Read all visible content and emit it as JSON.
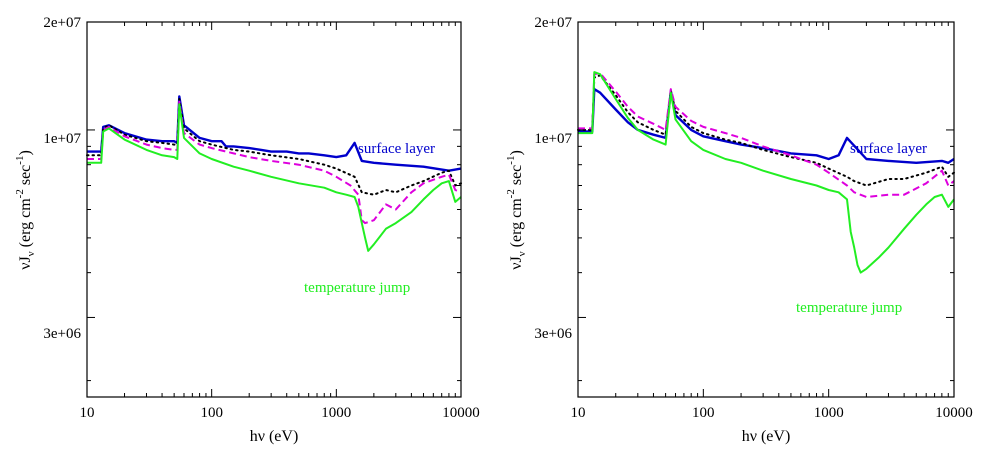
{
  "colors": {
    "surface": "#0000cc",
    "dotted": "#000000",
    "dashed": "#dd00dd",
    "jump": "#22ee22"
  },
  "chart_data": [
    {
      "type": "line",
      "xscale": "log",
      "yscale": "log",
      "xlim": [
        10,
        10000
      ],
      "ylim": [
        1800000,
        20000000
      ],
      "xticks": [
        "10",
        "100",
        "1000",
        "10000"
      ],
      "yticks": [
        "2e+07",
        "1e+07",
        "3e+06"
      ],
      "xlabel": "hν (eV)",
      "ylabel": {
        "main": "νJ",
        "sub": "ν",
        "units_open": " (erg cm",
        "exp1": "-2",
        "mid": " sec",
        "exp2": "-1",
        "close": ")"
      },
      "annotations": [
        {
          "text": "surface layer",
          "color": "#0000cc"
        },
        {
          "text": "temperature jump",
          "color": "#22ee22"
        }
      ],
      "series": [
        {
          "style": "solid",
          "color": "#0000cc",
          "x": [
            10,
            13,
            13.5,
            15,
            20,
            30,
            40,
            50,
            53,
            55,
            60,
            80,
            100,
            120,
            130,
            150,
            200,
            250,
            300,
            400,
            500,
            600,
            800,
            1000,
            1200,
            1400,
            1600,
            2000,
            3000,
            5000,
            8000,
            10000
          ],
          "y": [
            8700000,
            8700000,
            10200000,
            10300000,
            9800000,
            9400000,
            9300000,
            9300000,
            9200000,
            12400000,
            10300000,
            9500000,
            9300000,
            9300000,
            9000000,
            9000000,
            8900000,
            8800000,
            8700000,
            8700000,
            8600000,
            8600000,
            8500000,
            8400000,
            8500000,
            9200000,
            8200000,
            8100000,
            8000000,
            7900000,
            7700000,
            7800000
          ]
        },
        {
          "style": "dotted",
          "color": "#000000",
          "x": [
            10,
            13,
            13.5,
            15,
            20,
            30,
            40,
            50,
            53,
            55,
            60,
            80,
            100,
            150,
            200,
            300,
            500,
            800,
            1000,
            1400,
            1600,
            2000,
            2500,
            3000,
            4000,
            5000,
            7000,
            8000,
            9000,
            10000
          ],
          "y": [
            8500000,
            8500000,
            10100000,
            10300000,
            9700000,
            9300000,
            9200000,
            9100000,
            9100000,
            12200000,
            10100000,
            9300000,
            9100000,
            8800000,
            8700000,
            8500000,
            8300000,
            8000000,
            7800000,
            7400000,
            6700000,
            6600000,
            6800000,
            6700000,
            7000000,
            7200000,
            7600000,
            7700000,
            7000000,
            7100000
          ]
        },
        {
          "style": "dashed",
          "color": "#dd00dd",
          "x": [
            10,
            13,
            13.5,
            15,
            20,
            30,
            40,
            50,
            53,
            55,
            60,
            80,
            100,
            150,
            200,
            300,
            500,
            800,
            1000,
            1300,
            1500,
            1600,
            1700,
            2000,
            2500,
            3000,
            4000,
            5000,
            7000,
            8000,
            9000,
            10000
          ],
          "y": [
            8300000,
            8300000,
            10000000,
            10200000,
            9600000,
            9100000,
            8900000,
            8800000,
            8800000,
            12000000,
            9800000,
            9100000,
            8900000,
            8600000,
            8400000,
            8200000,
            8000000,
            7700000,
            7400000,
            7000000,
            6600000,
            5600000,
            5500000,
            5600000,
            6200000,
            6000000,
            6700000,
            7100000,
            7400000,
            7500000,
            6800000,
            6700000
          ]
        },
        {
          "style": "solid",
          "color": "#22ee22",
          "x": [
            10,
            13,
            13.5,
            15,
            20,
            30,
            40,
            50,
            53,
            55,
            60,
            80,
            100,
            150,
            200,
            300,
            500,
            800,
            1000,
            1200,
            1400,
            1500,
            1600,
            1700,
            1800,
            2000,
            2500,
            3000,
            4000,
            5000,
            6000,
            7000,
            8000,
            9000,
            10000
          ],
          "y": [
            8100000,
            8100000,
            9900000,
            10100000,
            9400000,
            8800000,
            8500000,
            8400000,
            8300000,
            11800000,
            9500000,
            8600000,
            8300000,
            7900000,
            7700000,
            7400000,
            7100000,
            6900000,
            6700000,
            6600000,
            6500000,
            6100000,
            5500000,
            5000000,
            4600000,
            4800000,
            5300000,
            5500000,
            5900000,
            6400000,
            6800000,
            7100000,
            7200000,
            6300000,
            6500000
          ]
        }
      ]
    },
    {
      "type": "line",
      "xscale": "log",
      "yscale": "log",
      "xlim": [
        10,
        10000
      ],
      "ylim": [
        1800000,
        20000000
      ],
      "xticks": [
        "10",
        "100",
        "1000",
        "10000"
      ],
      "yticks": [
        "2e+07",
        "1e+07",
        "3e+06"
      ],
      "xlabel": "hν (eV)",
      "ylabel": {
        "main": "νJ",
        "sub": "ν",
        "units_open": " (erg cm",
        "exp1": "-2",
        "mid": " sec",
        "exp2": "-1",
        "close": ")"
      },
      "annotations": [
        {
          "text": "surface layer",
          "color": "#0000cc"
        },
        {
          "text": "temperature jump",
          "color": "#22ee22"
        }
      ],
      "series": [
        {
          "style": "solid",
          "color": "#0000cc",
          "x": [
            10,
            13,
            13.5,
            15,
            20,
            25,
            30,
            40,
            50,
            55,
            60,
            80,
            100,
            150,
            200,
            300,
            500,
            800,
            1000,
            1200,
            1400,
            2000,
            3000,
            5000,
            8000,
            9000,
            10000
          ],
          "y": [
            9900000,
            9900000,
            13000000,
            12700000,
            11400000,
            10500000,
            10000000,
            9700000,
            9500000,
            12800000,
            11000000,
            10000000,
            9600000,
            9300000,
            9100000,
            8900000,
            8600000,
            8500000,
            8300000,
            8500000,
            9500000,
            8300000,
            8200000,
            8100000,
            8200000,
            8100000,
            8300000
          ]
        },
        {
          "style": "dotted",
          "color": "#000000",
          "x": [
            10,
            13,
            13.5,
            15,
            20,
            25,
            30,
            40,
            50,
            55,
            60,
            80,
            100,
            150,
            200,
            300,
            500,
            800,
            1000,
            1400,
            1600,
            2000,
            3000,
            4000,
            6000,
            8000,
            9000,
            10000
          ],
          "y": [
            10000000,
            10000000,
            14000000,
            14200000,
            12500000,
            11200000,
            10500000,
            10000000,
            9700000,
            12900000,
            11300000,
            10200000,
            9800000,
            9400000,
            9200000,
            8800000,
            8400000,
            8100000,
            7800000,
            7400000,
            7200000,
            7000000,
            7300000,
            7300000,
            7600000,
            7900000,
            7400000,
            7600000
          ]
        },
        {
          "style": "dashed",
          "color": "#dd00dd",
          "x": [
            10,
            13,
            13.5,
            15,
            20,
            25,
            30,
            40,
            50,
            55,
            60,
            80,
            100,
            150,
            200,
            300,
            500,
            800,
            1000,
            1400,
            1600,
            2000,
            3000,
            4000,
            6000,
            8000,
            9000,
            10000
          ],
          "y": [
            10100000,
            10100000,
            14300000,
            14400000,
            12800000,
            11600000,
            10900000,
            10400000,
            10000000,
            13000000,
            11600000,
            10600000,
            10200000,
            9800000,
            9500000,
            9000000,
            8500000,
            8000000,
            7600000,
            7000000,
            6700000,
            6500000,
            6600000,
            6600000,
            7100000,
            7700000,
            7000000,
            7200000
          ]
        },
        {
          "style": "solid",
          "color": "#22ee22",
          "x": [
            10,
            13,
            13.5,
            15,
            20,
            25,
            30,
            40,
            50,
            55,
            60,
            80,
            100,
            150,
            200,
            300,
            500,
            800,
            1000,
            1200,
            1400,
            1500,
            1600,
            1700,
            1800,
            2000,
            2500,
            3000,
            4000,
            5000,
            6000,
            7000,
            8000,
            9000,
            10000
          ],
          "y": [
            9800000,
            9800000,
            14500000,
            14300000,
            12200000,
            10800000,
            10000000,
            9400000,
            9100000,
            12700000,
            10700000,
            9300000,
            8800000,
            8300000,
            8100000,
            7700000,
            7300000,
            7000000,
            6800000,
            6700000,
            6400000,
            5200000,
            4700000,
            4200000,
            4000000,
            4100000,
            4400000,
            4700000,
            5300000,
            5800000,
            6200000,
            6500000,
            6600000,
            6100000,
            6400000
          ]
        }
      ]
    }
  ]
}
